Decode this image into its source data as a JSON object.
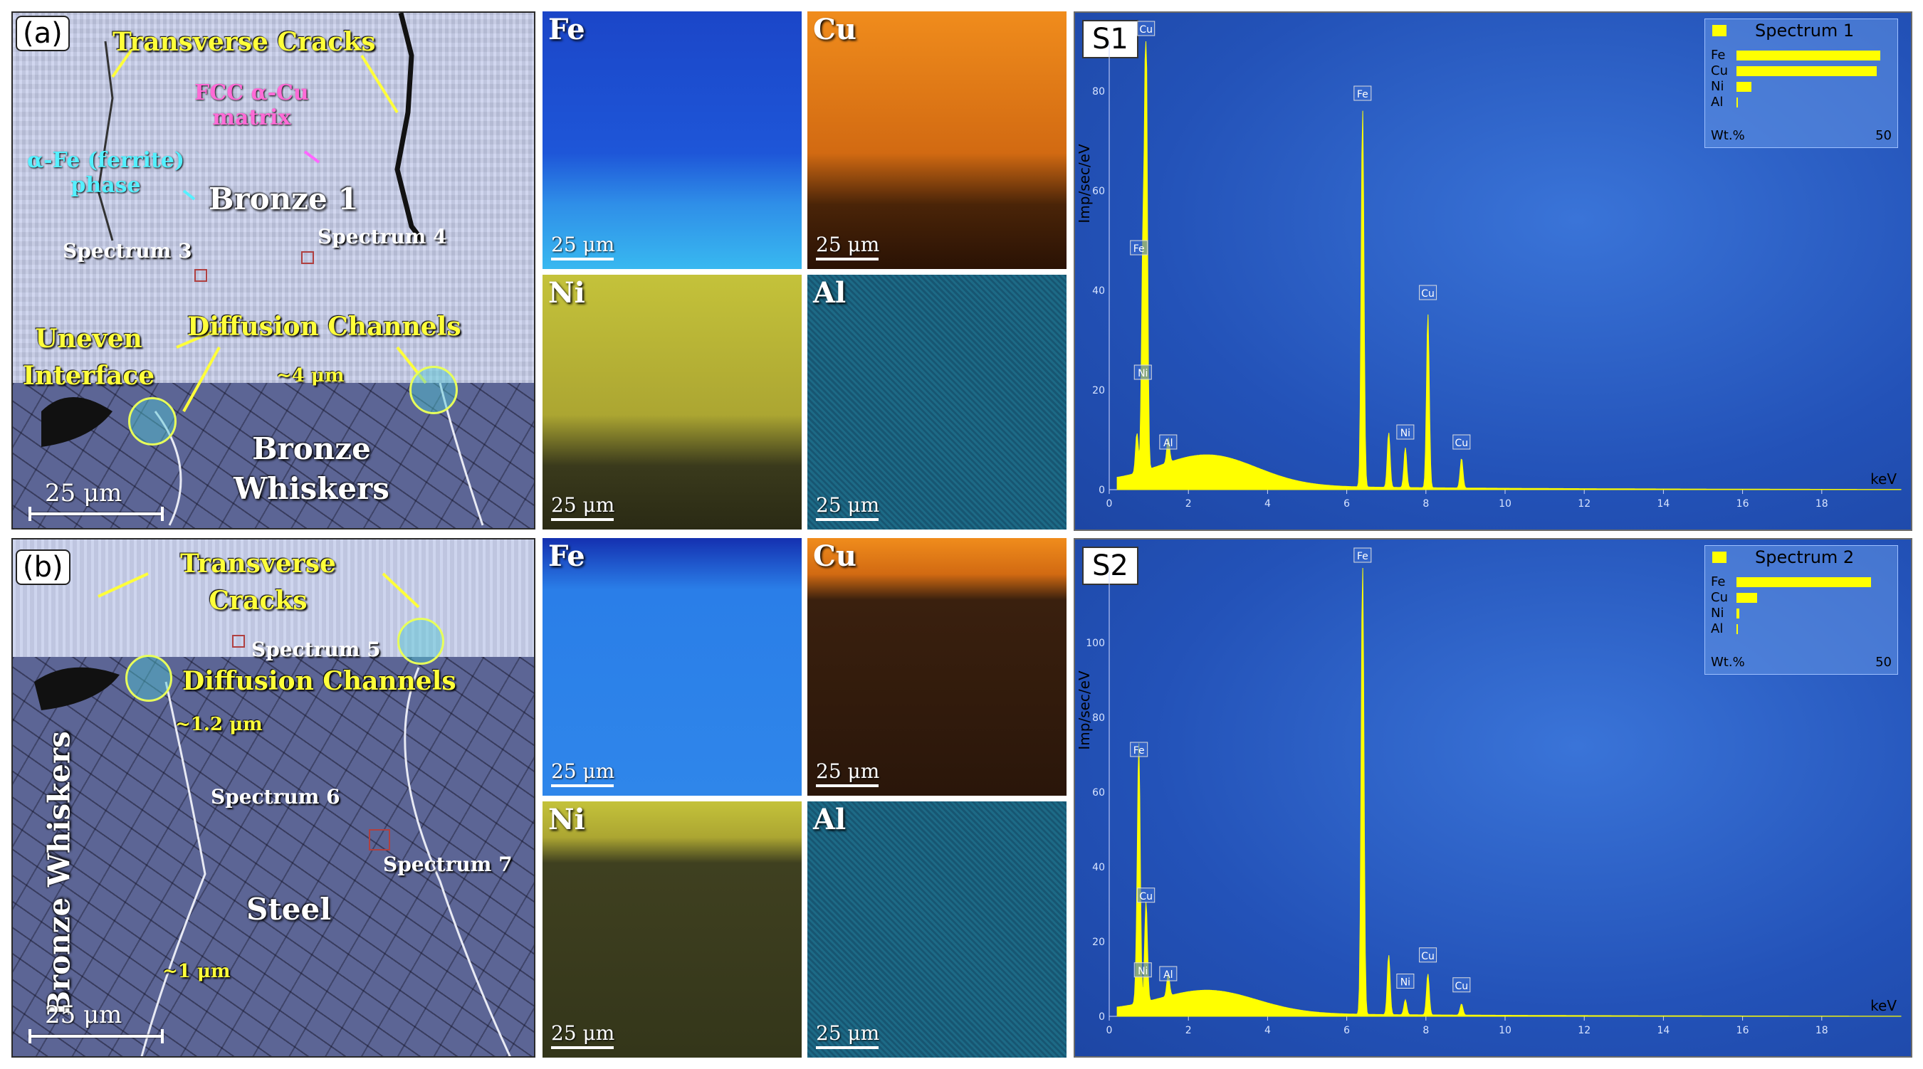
{
  "panel_a": {
    "tag": "(a)",
    "labels": {
      "transverse_cracks": "Transverse Cracks",
      "fcc_matrix_1": "FCC α-Cu",
      "fcc_matrix_2": "matrix",
      "ferrite_1": "α-Fe (ferrite)",
      "ferrite_2": "phase",
      "bronze1": "Bronze 1",
      "spectrum3": "Spectrum 3",
      "spectrum4": "Spectrum 4",
      "uneven_1": "Uneven",
      "uneven_2": "Interface",
      "diffusion_channels": "Diffusion Channels",
      "approx4": "~4 μm",
      "bronze_whiskers_1": "Bronze",
      "bronze_whiskers_2": "Whiskers",
      "scale": "25  μm"
    }
  },
  "panel_b": {
    "tag": "(b)",
    "labels": {
      "transverse_1": "Transverse",
      "transverse_2": "Cracks",
      "spectrum5": "Spectrum 5",
      "diffusion_channels": "Diffusion Channels",
      "approx12": "~1.2 μm",
      "spectrum6": "Spectrum 6",
      "spectrum7": "Spectrum 7",
      "bronze_whiskers": "Bronze Whiskers",
      "steel": "Steel",
      "approx1": "~1 μm",
      "scale": "25  μm"
    }
  },
  "maps_a": [
    {
      "element": "Fe",
      "scale": "25  μm",
      "color": "#1f5fe0"
    },
    {
      "element": "Cu",
      "scale": "25  μm",
      "color": "#e07a10"
    },
    {
      "element": "Ni",
      "scale": "25  μm",
      "color": "#b8b830"
    },
    {
      "element": "Al",
      "scale": "25  μm",
      "color": "#1f6f8a"
    }
  ],
  "maps_b": [
    {
      "element": "Fe",
      "scale": "25  μm",
      "color": "#2a7ee8"
    },
    {
      "element": "Cu",
      "scale": "25  μm",
      "color": "#3a2010"
    },
    {
      "element": "Ni",
      "scale": "25  μm",
      "color": "#3f4020"
    },
    {
      "element": "Al",
      "scale": "25  μm",
      "color": "#1f6f8a"
    }
  ],
  "chart_data": [
    {
      "type": "line",
      "tag": "S1",
      "legend_title": "Spectrum 1",
      "legend_rows": [
        "Fe",
        "Cu",
        "Ni",
        "Al"
      ],
      "legend_values": [
        48,
        47,
        5,
        0.5
      ],
      "legend_footer": "Wt.%",
      "legend_max": "50",
      "ylabel": "Imp/sec/eV",
      "xlabel": "keV",
      "xlim": [
        0,
        20
      ],
      "ylim": [
        0,
        90
      ],
      "yticks": [
        "0",
        "20",
        "40",
        "60",
        "80"
      ],
      "xticks": [
        "0",
        "2",
        "4",
        "6",
        "8",
        "10",
        "12",
        "14",
        "16",
        "18"
      ],
      "peaks": [
        {
          "x": 0.7,
          "y": 8
        },
        {
          "x": 0.93,
          "y": 91
        },
        {
          "x": 0.85,
          "y": 44
        },
        {
          "x": 1.49,
          "y": 5
        },
        {
          "x": 6.4,
          "y": 76
        },
        {
          "x": 7.06,
          "y": 11
        },
        {
          "x": 7.48,
          "y": 8
        },
        {
          "x": 8.05,
          "y": 35
        },
        {
          "x": 8.9,
          "y": 6
        }
      ],
      "peak_labels": [
        {
          "text": "Cu",
          "x": 0.93,
          "y": 91
        },
        {
          "text": "Fe",
          "x": 6.4,
          "y": 77
        },
        {
          "text": "Fe",
          "x": 0.75,
          "y": 46
        },
        {
          "text": "Cu",
          "x": 8.05,
          "y": 37
        },
        {
          "text": "Ni",
          "x": 0.85,
          "y": 21
        },
        {
          "text": "Al",
          "x": 1.49,
          "y": 7
        },
        {
          "text": "Ni",
          "x": 7.48,
          "y": 9
        },
        {
          "text": "Cu",
          "x": 8.9,
          "y": 7
        }
      ]
    },
    {
      "type": "line",
      "tag": "S2",
      "legend_title": "Spectrum 2",
      "legend_rows": [
        "Fe",
        "Cu",
        "Ni",
        "Al"
      ],
      "legend_values": [
        45,
        7,
        1,
        0.3
      ],
      "legend_footer": "Wt.%",
      "legend_max": "50",
      "ylabel": "Imp/sec/eV",
      "xlabel": "keV",
      "xlim": [
        0,
        20
      ],
      "ylim": [
        0,
        120
      ],
      "yticks": [
        "0",
        "20",
        "40",
        "60",
        "80",
        "100"
      ],
      "xticks": [
        "0",
        "2",
        "4",
        "6",
        "8",
        "10",
        "12",
        "14",
        "16",
        "18"
      ],
      "peaks": [
        {
          "x": 0.7,
          "y": 10
        },
        {
          "x": 0.75,
          "y": 66
        },
        {
          "x": 0.93,
          "y": 27
        },
        {
          "x": 1.49,
          "y": 6
        },
        {
          "x": 6.4,
          "y": 121
        },
        {
          "x": 7.06,
          "y": 16
        },
        {
          "x": 7.48,
          "y": 4
        },
        {
          "x": 8.05,
          "y": 11
        },
        {
          "x": 8.9,
          "y": 3
        }
      ],
      "peak_labels": [
        {
          "text": "Fe",
          "x": 6.4,
          "y": 121
        },
        {
          "text": "Fe",
          "x": 0.75,
          "y": 68
        },
        {
          "text": "Cu",
          "x": 0.93,
          "y": 29
        },
        {
          "text": "Ni",
          "x": 0.85,
          "y": 9
        },
        {
          "text": "Al",
          "x": 1.49,
          "y": 8
        },
        {
          "text": "Cu",
          "x": 8.05,
          "y": 13
        },
        {
          "text": "Ni",
          "x": 7.48,
          "y": 6
        },
        {
          "text": "Cu",
          "x": 8.9,
          "y": 5
        }
      ]
    }
  ]
}
